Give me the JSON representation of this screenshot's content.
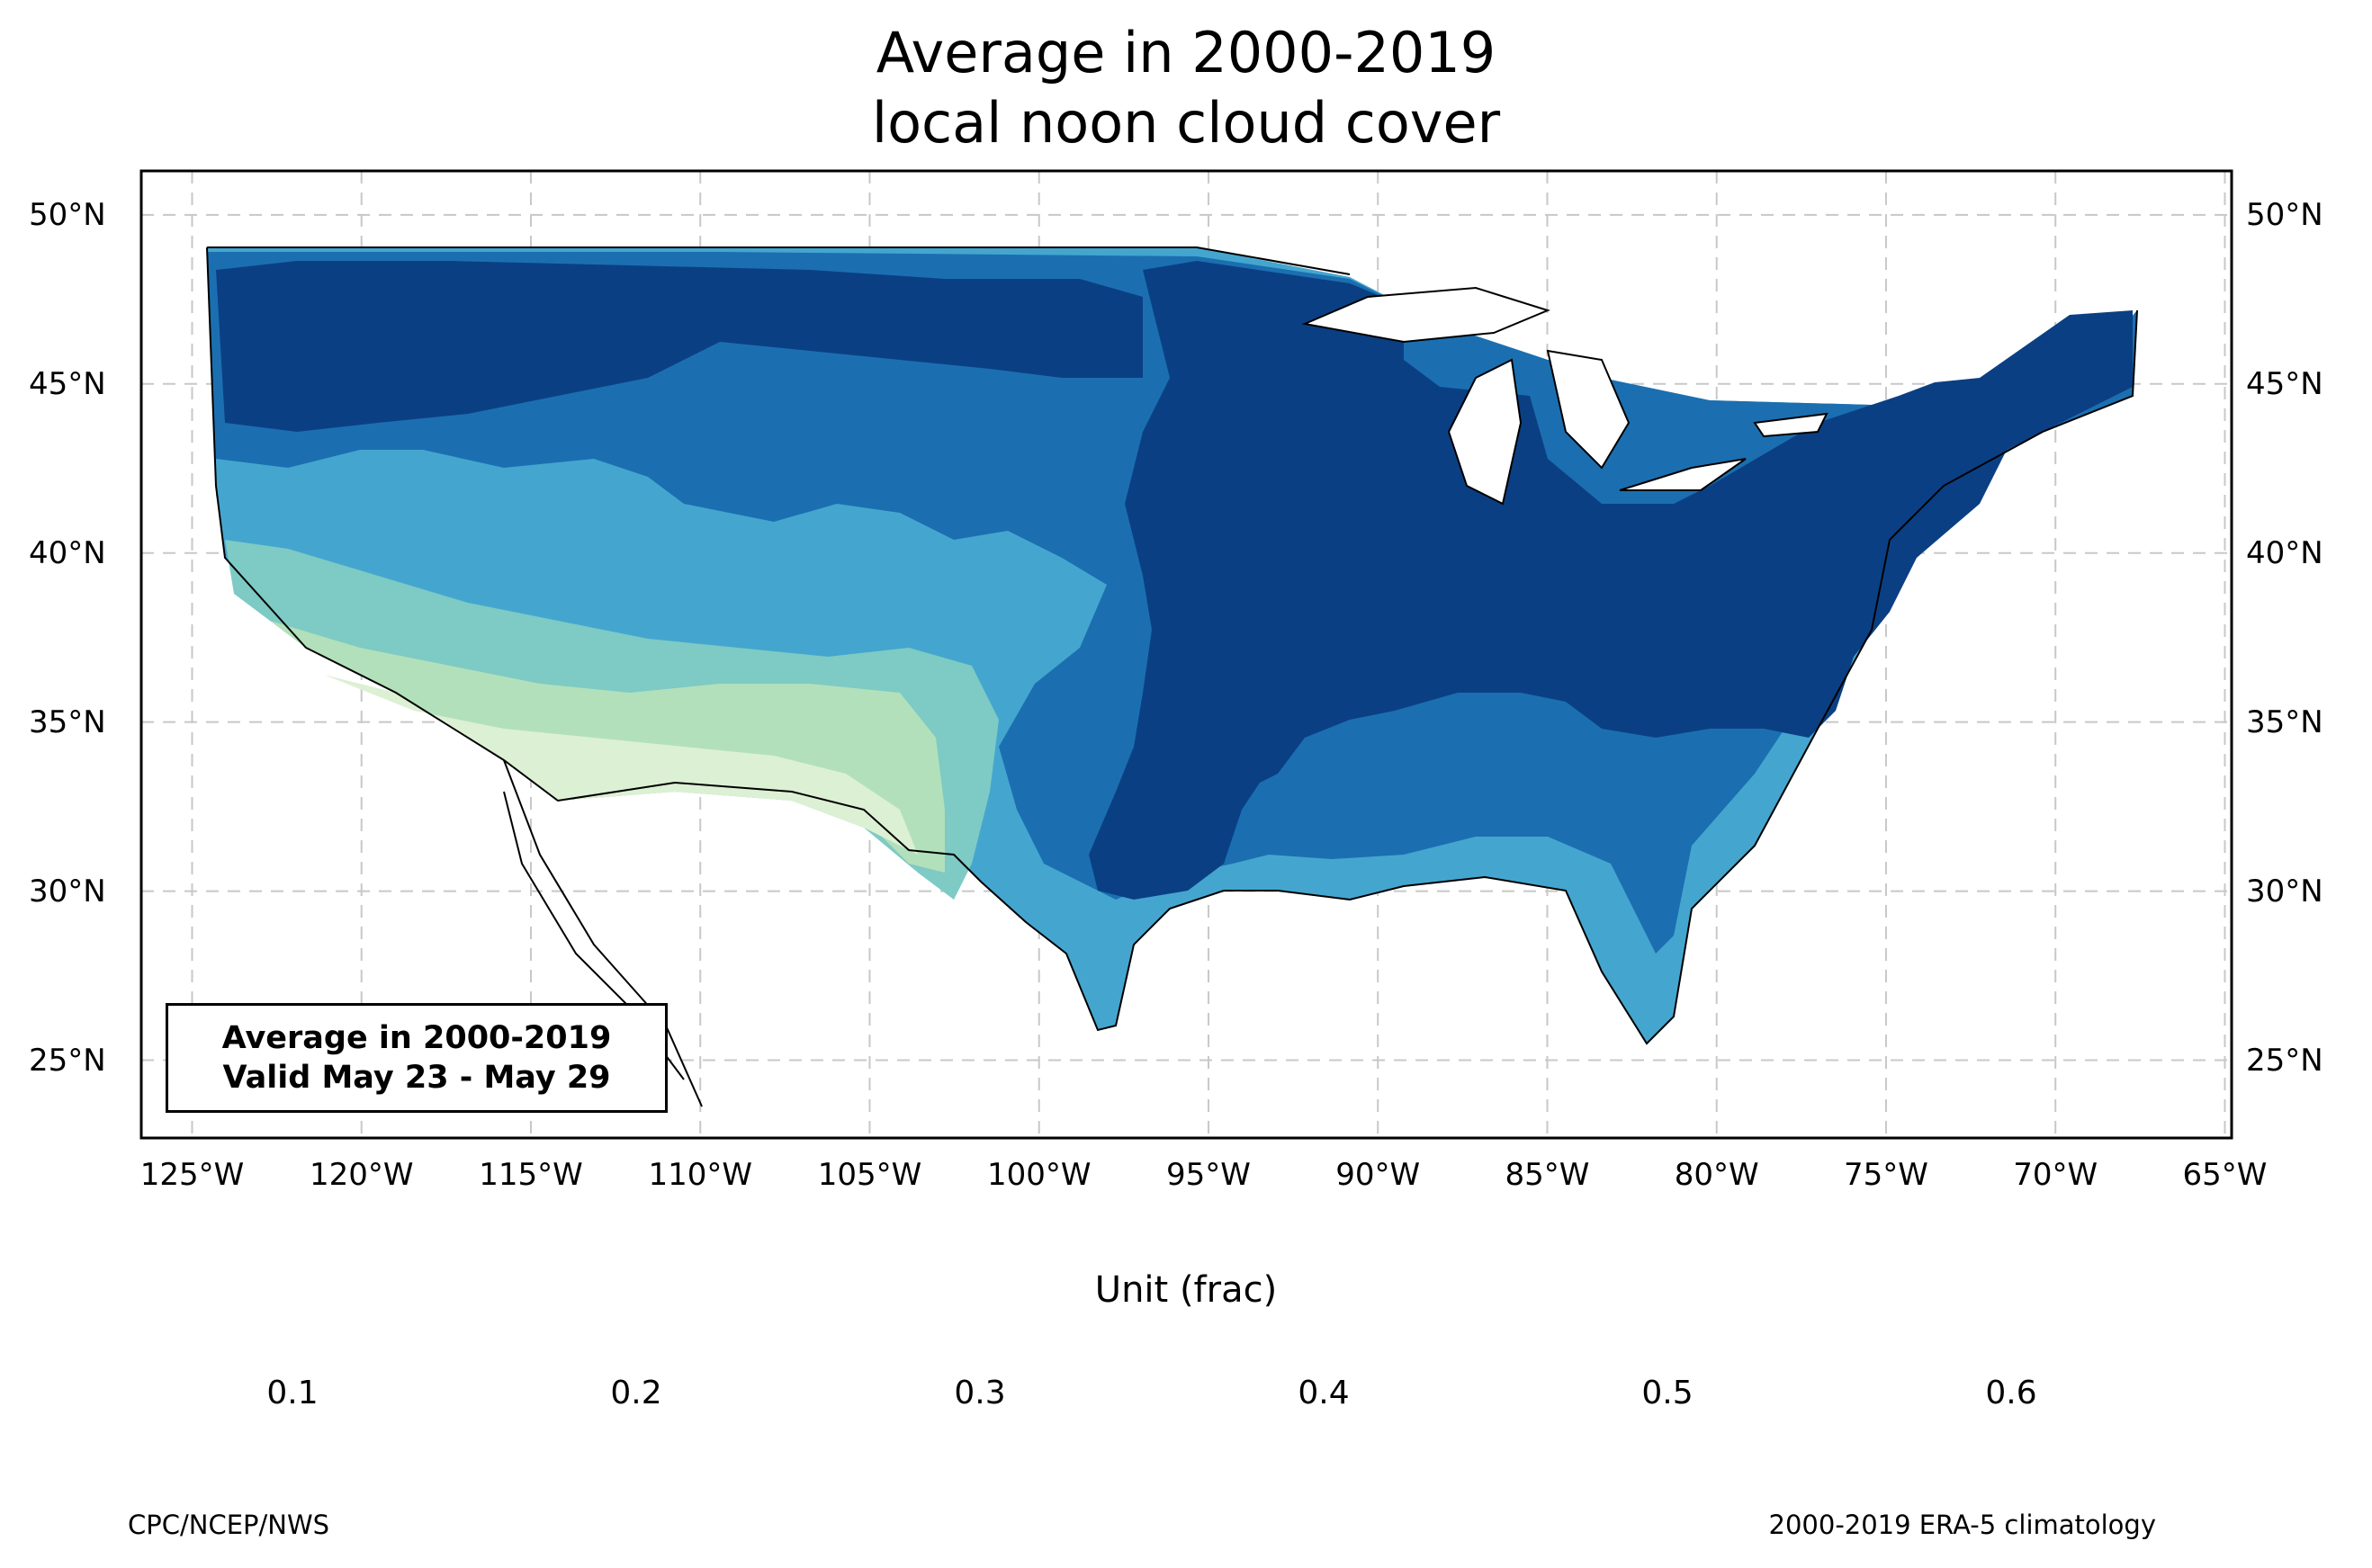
{
  "title": {
    "line1": "Average in 2000-2019",
    "line2": "local noon cloud cover"
  },
  "map": {
    "projection": "lat-lon",
    "extent": {
      "lon": [
        -126.5,
        -64.8
      ],
      "lat": [
        22.7,
        51.3
      ]
    },
    "lat_ticks": [
      "50°N",
      "45°N",
      "40°N",
      "35°N",
      "30°N",
      "25°N"
    ],
    "lon_ticks": [
      "125°W",
      "120°W",
      "115°W",
      "110°W",
      "105°W",
      "100°W",
      "95°W",
      "90°W",
      "85°W",
      "80°W",
      "75°W",
      "70°W",
      "65°W"
    ],
    "gridlines": "dashed",
    "variable": "local noon cloud cover",
    "pattern_summary": {
      "southwest_min": 0.1,
      "southeast_and_northeast_max": 0.6
    }
  },
  "info_box": {
    "line1": "Average in 2000-2019",
    "line2": "Valid May 23 - May 29"
  },
  "colorbar": {
    "label": "Unit (frac)",
    "ticks": [
      "0.1",
      "0.2",
      "0.3",
      "0.4",
      "0.5",
      "0.6"
    ],
    "levels": [
      0.1,
      0.2,
      0.3,
      0.4,
      0.5,
      0.6
    ],
    "colors": [
      "#ffffff",
      "#dcf0d4",
      "#b2e0bb",
      "#7ecac4",
      "#44a6cf",
      "#1b6fb0",
      "#0b3f84"
    ],
    "extend": "both"
  },
  "footer": {
    "left": "CPC/NCEP/NWS",
    "right": "2000-2019 ERA-5 climatology"
  }
}
